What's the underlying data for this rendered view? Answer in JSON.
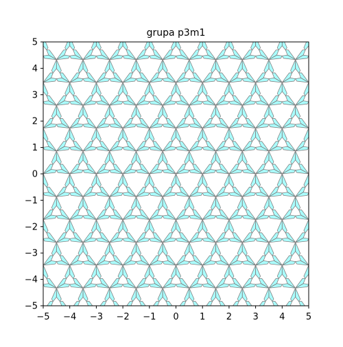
{
  "chart_data": {
    "type": "pattern",
    "title": "grupa p3m1",
    "xlabel": "",
    "ylabel": "",
    "xlim": [
      -5,
      5
    ],
    "ylim": [
      -5,
      5
    ],
    "xticks": [
      -5,
      -4,
      -3,
      -2,
      -1,
      0,
      1,
      2,
      3,
      4,
      5
    ],
    "yticks": [
      -5,
      -4,
      -3,
      -2,
      -1,
      0,
      1,
      2,
      3,
      4,
      5
    ],
    "xtick_labels": [
      "−5",
      "−4",
      "−3",
      "−2",
      "−1",
      "0",
      "1",
      "2",
      "3",
      "4",
      "5"
    ],
    "ytick_labels": [
      "−5",
      "−4",
      "−3",
      "−2",
      "−1",
      "0",
      "1",
      "2",
      "3",
      "4",
      "5"
    ],
    "grid": false,
    "lattice": {
      "type": "hexagonal",
      "a1": [
        1,
        0
      ],
      "a2": [
        0.5,
        0.866025
      ]
    },
    "motif_fundamental_triangle": [
      [
        0,
        0
      ],
      [
        0.3,
        0.17
      ],
      [
        0.5,
        0.14
      ],
      [
        0.45,
        0.05
      ]
    ],
    "tile_fill": "#aaffff",
    "tile_edge": "#808080",
    "colors": {
      "background": "#ffffff",
      "frame": "#000000"
    }
  }
}
